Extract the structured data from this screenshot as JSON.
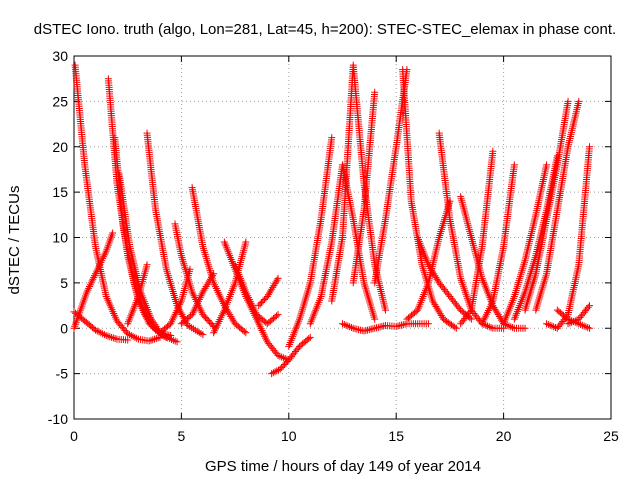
{
  "chart_data": {
    "type": "scatter",
    "title": "dSTEC Iono. truth (algo, Lon=281, Lat=45, h=200): STEC-STEC_elemax in phase cont.",
    "xlabel": "GPS time / hours of day 149 of year 2014",
    "ylabel": "dSTEC  / TECUs",
    "xlim": [
      0,
      25
    ],
    "ylim": [
      -10,
      30
    ],
    "xticks": [
      "0",
      "5",
      "10",
      "15",
      "20",
      "25"
    ],
    "yticks": [
      "-10",
      "-5",
      "0",
      "5",
      "10",
      "15",
      "20",
      "25",
      "30"
    ],
    "grid": true,
    "marker": "+",
    "colors": {
      "series": "#ff0000",
      "grid": "#a0a0a0",
      "axis": "#000000"
    },
    "series": [
      {
        "x": [
          0.05,
          0.5,
          1.0,
          1.5,
          2.0,
          2.5,
          3.0,
          3.5,
          4.0
        ],
        "y": [
          29,
          18,
          9,
          3.5,
          0.8,
          -0.6,
          -1.2,
          -1.4,
          -1.0
        ]
      },
      {
        "x": [
          0.0,
          0.3,
          0.6,
          1.0,
          1.5,
          1.8
        ],
        "y": [
          0.0,
          2.0,
          4.0,
          6.0,
          8.5,
          10.5
        ]
      },
      {
        "x": [
          0.0,
          0.5,
          1.0,
          1.5,
          2.0,
          2.5
        ],
        "y": [
          1.8,
          0.8,
          -0.2,
          -0.8,
          -1.2,
          -1.3
        ]
      },
      {
        "x": [
          1.6,
          2.0,
          2.5,
          3.0,
          3.5,
          4.0,
          4.5
        ],
        "y": [
          27.5,
          16,
          8,
          3.0,
          0.5,
          -0.5,
          -0.8
        ]
      },
      {
        "x": [
          1.9,
          2.3,
          2.8,
          3.3,
          3.8,
          4.3
        ],
        "y": [
          21,
          11,
          5,
          1.5,
          -0.2,
          -1.0
        ]
      },
      {
        "x": [
          2.1,
          2.6,
          3.1,
          3.6,
          4.1,
          4.8
        ],
        "y": [
          17,
          9,
          4,
          1.0,
          -0.8,
          -1.5
        ]
      },
      {
        "x": [
          2.5,
          3.0,
          3.4
        ],
        "y": [
          0.5,
          3.5,
          7.0
        ]
      },
      {
        "x": [
          3.4,
          3.8,
          4.3,
          4.8,
          5.3,
          6.0
        ],
        "y": [
          21.5,
          13,
          6.5,
          2.5,
          0.3,
          -0.7
        ]
      },
      {
        "x": [
          4.0,
          4.5,
          5.0,
          5.4
        ],
        "y": [
          -0.5,
          0.5,
          3.0,
          6.5
        ]
      },
      {
        "x": [
          4.7,
          5.0,
          5.5,
          6.0,
          6.5
        ],
        "y": [
          11.5,
          8,
          4,
          1.5,
          0.2
        ]
      },
      {
        "x": [
          5.0,
          5.5,
          6.0,
          6.5
        ],
        "y": [
          0.5,
          1.5,
          4.0,
          6.0
        ]
      },
      {
        "x": [
          5.5,
          6.0,
          6.5,
          7.0,
          7.5,
          8.0
        ],
        "y": [
          15.5,
          9,
          5,
          2.5,
          0.5,
          -0.5
        ]
      },
      {
        "x": [
          6.5,
          7.0,
          7.5,
          8.0
        ],
        "y": [
          -0.5,
          2.0,
          5.0,
          9.5
        ]
      },
      {
        "x": [
          7.0,
          7.5,
          8.0,
          8.5,
          9.0,
          9.5,
          10.0
        ],
        "y": [
          9.5,
          6.5,
          3.5,
          1.0,
          -1.5,
          -3.0,
          -3.5
        ]
      },
      {
        "x": [
          7.5,
          8.0,
          8.5,
          9.0,
          9.5
        ],
        "y": [
          7.0,
          4.0,
          1.5,
          0.5,
          1.5
        ]
      },
      {
        "x": [
          8.6,
          9.0,
          9.5
        ],
        "y": [
          2.5,
          3.5,
          5.5
        ]
      },
      {
        "x": [
          9.2,
          9.6,
          10.0,
          10.5,
          11.0
        ],
        "y": [
          -5.0,
          -4.5,
          -3.5,
          -2.0,
          -1.0
        ]
      },
      {
        "x": [
          10.0,
          10.5,
          11.0,
          11.5,
          12.0
        ],
        "y": [
          -2.0,
          1.0,
          5.0,
          12.0,
          21.0
        ]
      },
      {
        "x": [
          11.0,
          11.5,
          12.0,
          12.5,
          13.0,
          13.5,
          14.0
        ],
        "y": [
          0.5,
          3.5,
          9.5,
          18.0,
          12.0,
          5.0,
          1.0
        ]
      },
      {
        "x": [
          12.0,
          12.5,
          13.0,
          13.5,
          14.0,
          14.5
        ],
        "y": [
          3.0,
          10.0,
          29.0,
          16.0,
          7.0,
          2.0
        ]
      },
      {
        "x": [
          13.0,
          13.5,
          14.0
        ],
        "y": [
          5.0,
          13.0,
          26.0
        ]
      },
      {
        "x": [
          12.5,
          13.0,
          13.5,
          14.0,
          14.5,
          15.0,
          15.5,
          16.0,
          16.5
        ],
        "y": [
          0.5,
          0.0,
          -0.3,
          0.0,
          0.3,
          0.2,
          0.5,
          0.5,
          0.5
        ]
      },
      {
        "x": [
          14.0,
          14.5,
          15.0,
          15.5
        ],
        "y": [
          5.0,
          12.0,
          20.0,
          28.5
        ]
      },
      {
        "x": [
          15.3,
          15.7,
          16.2,
          16.7,
          17.2,
          17.8
        ],
        "y": [
          28.5,
          14,
          7,
          3.0,
          1.0,
          0.0
        ]
      },
      {
        "x": [
          15.5,
          16.0,
          16.5,
          17.0,
          17.5
        ],
        "y": [
          1.0,
          2.0,
          5.0,
          10.0,
          14.0
        ]
      },
      {
        "x": [
          16.0,
          16.5,
          17.0,
          17.5,
          18.0,
          18.5
        ],
        "y": [
          10.0,
          7.0,
          5.0,
          3.5,
          2.0,
          1.0
        ]
      },
      {
        "x": [
          17.0,
          17.5,
          18.0,
          18.5,
          19.0,
          19.5,
          20.0
        ],
        "y": [
          21.5,
          12,
          5.5,
          2.0,
          0.5,
          0.0,
          0.0
        ]
      },
      {
        "x": [
          18.0,
          18.5,
          19.0,
          19.5,
          20.0,
          20.5,
          21.0
        ],
        "y": [
          14.5,
          10,
          5.5,
          2.5,
          0.5,
          0.0,
          0.0
        ]
      },
      {
        "x": [
          18.0,
          18.5,
          19.0,
          19.5
        ],
        "y": [
          0.5,
          2.0,
          9.0,
          19.5
        ]
      },
      {
        "x": [
          19.0,
          19.5,
          20.0,
          20.5
        ],
        "y": [
          0.5,
          3.0,
          9.0,
          18.0
        ]
      },
      {
        "x": [
          20.0,
          20.5,
          21.0,
          21.5,
          22.0
        ],
        "y": [
          0.5,
          3.5,
          7.5,
          12.5,
          18.0
        ]
      },
      {
        "x": [
          20.5,
          21.0,
          21.5,
          22.0,
          22.5
        ],
        "y": [
          1.0,
          4.0,
          8.0,
          13.0,
          19.0
        ]
      },
      {
        "x": [
          21.0,
          21.5,
          22.0,
          22.5,
          23.0
        ],
        "y": [
          2.0,
          6.0,
          12.0,
          18.0,
          25.0
        ]
      },
      {
        "x": [
          21.5,
          22.0,
          22.5,
          23.0,
          23.5
        ],
        "y": [
          2.0,
          6.0,
          13.0,
          20.0,
          25.0
        ]
      },
      {
        "x": [
          22.0,
          22.5,
          23.0,
          23.5,
          24.0
        ],
        "y": [
          0.5,
          0.0,
          1.5,
          7.0,
          20.0
        ]
      },
      {
        "x": [
          22.5,
          23.0,
          23.5,
          24.0
        ],
        "y": [
          2.0,
          1.0,
          0.5,
          0.0
        ]
      },
      {
        "x": [
          23.0,
          23.5,
          24.0
        ],
        "y": [
          0.5,
          1.0,
          2.5
        ]
      }
    ]
  }
}
